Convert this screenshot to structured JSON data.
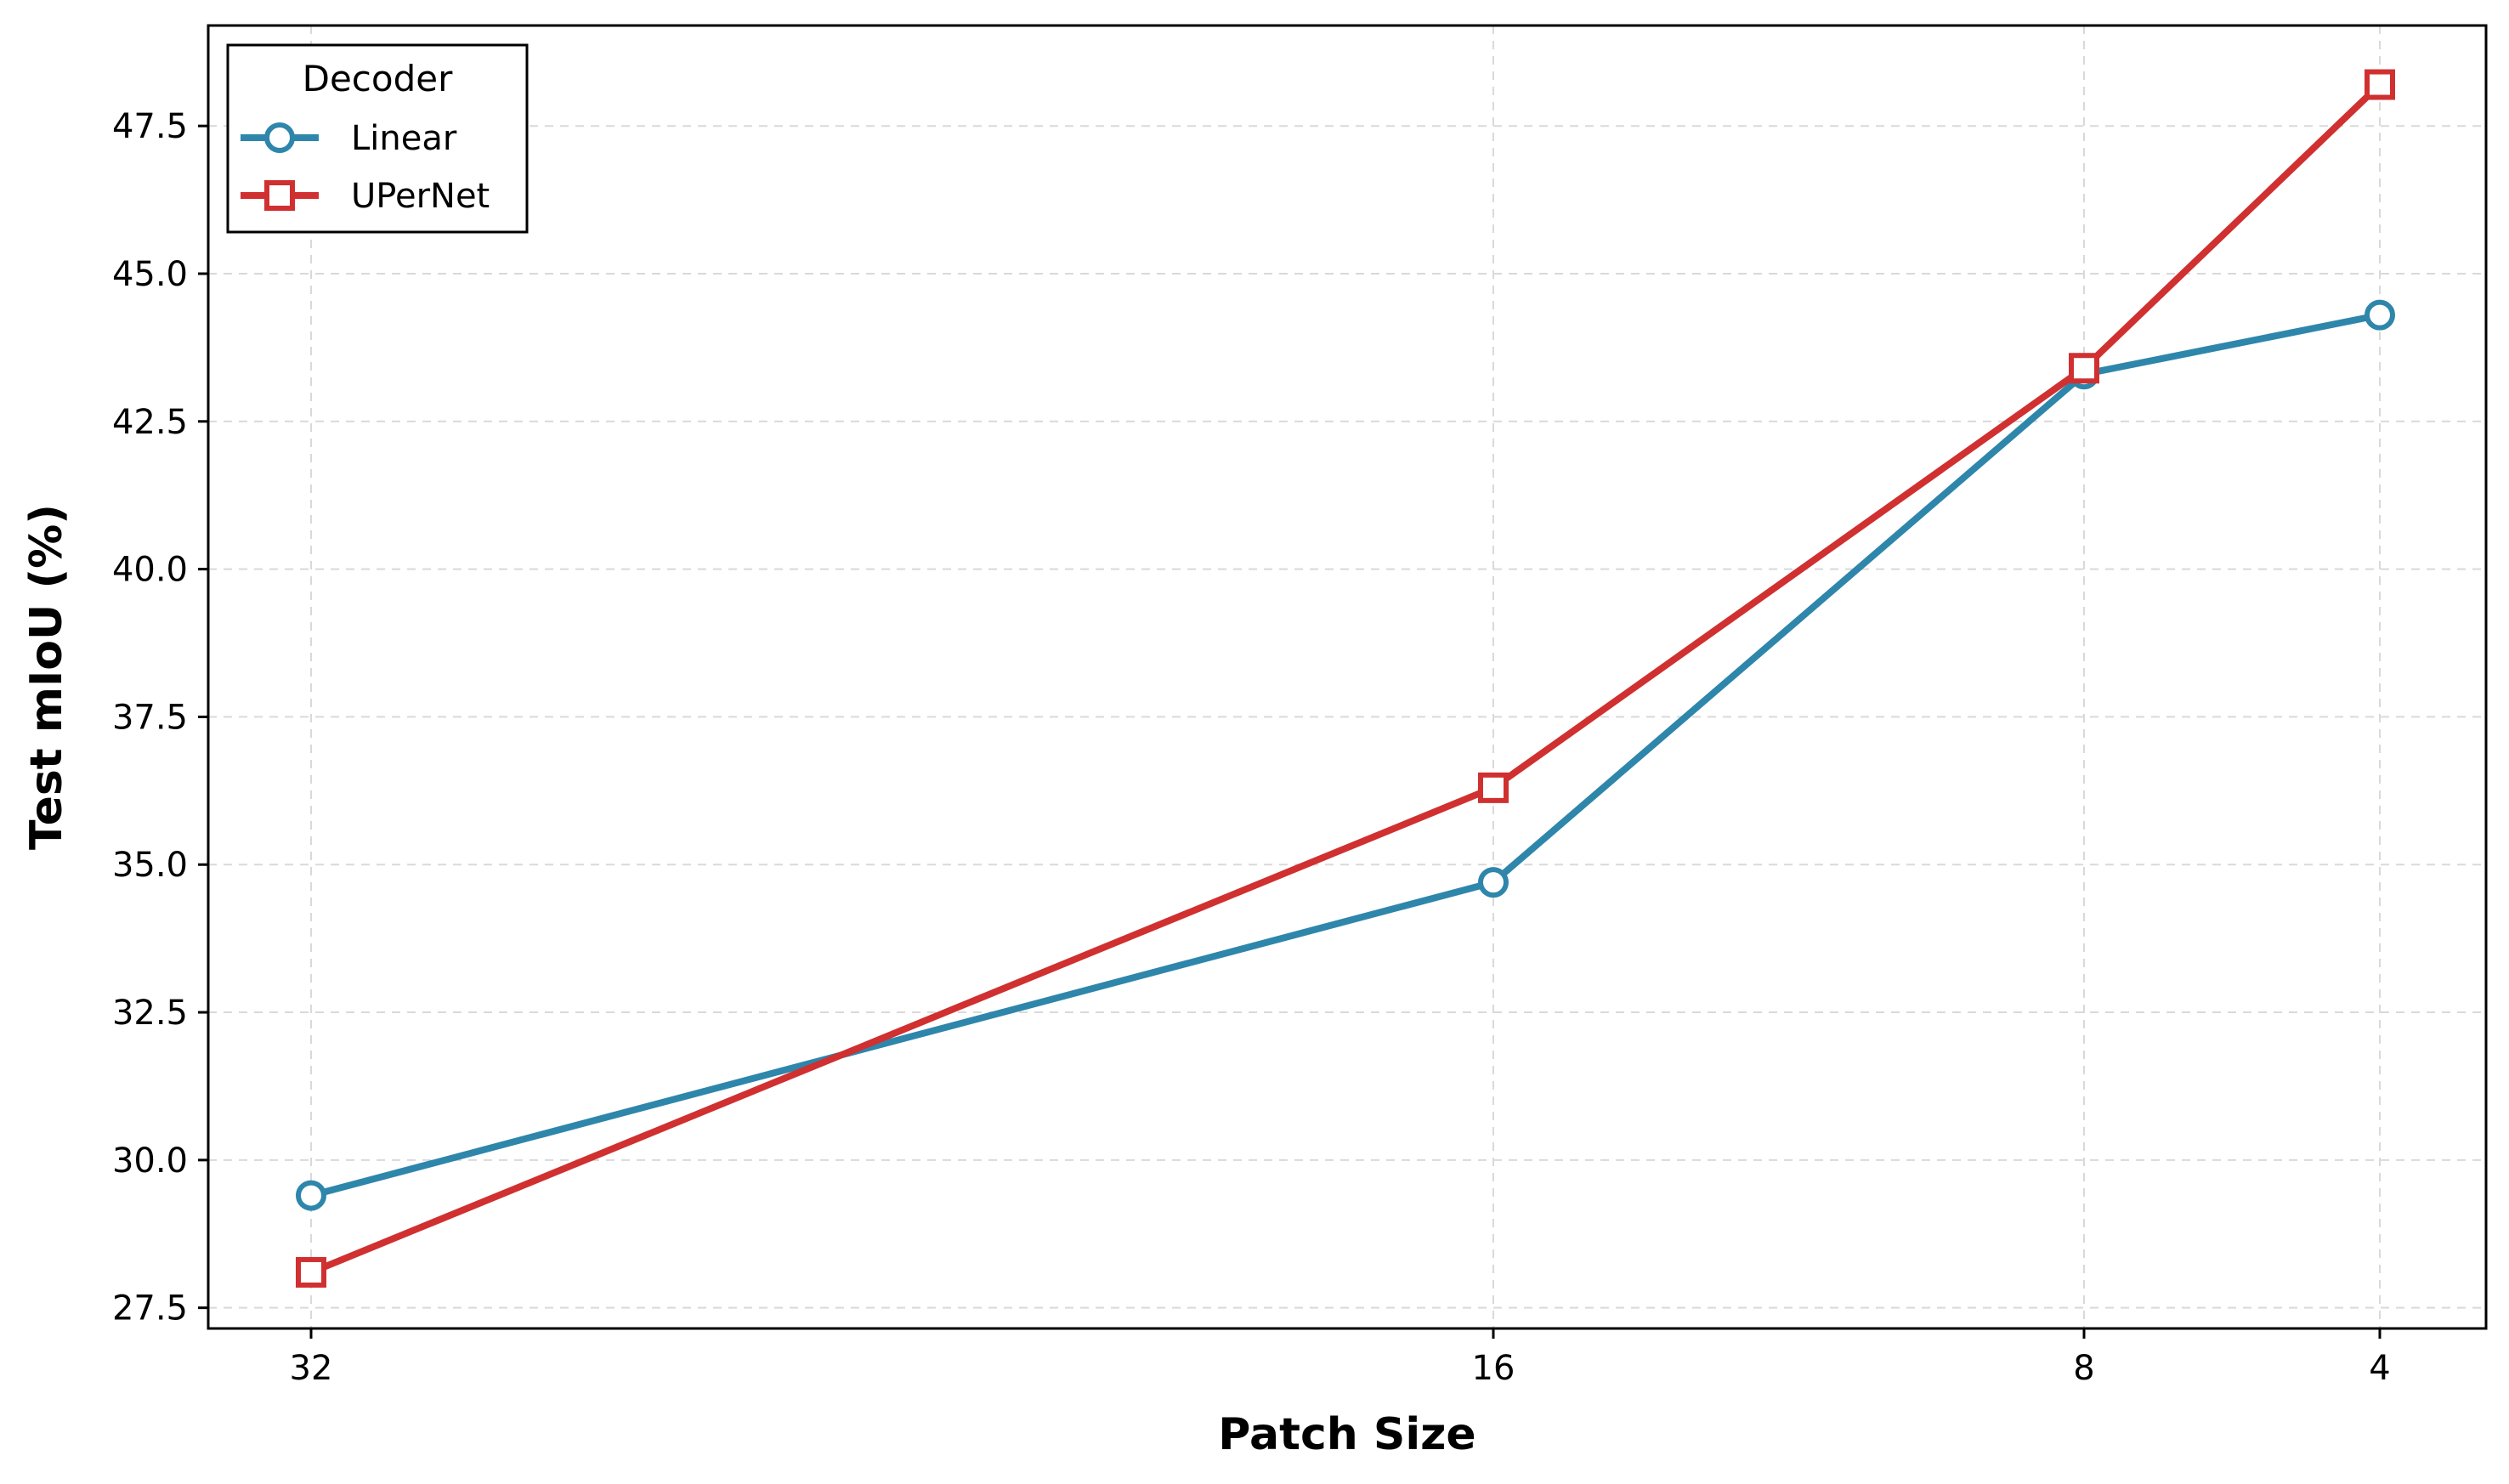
{
  "chart_data": {
    "type": "line",
    "xlabel": "Patch Size",
    "ylabel": "Test mIoU (%)",
    "x_scale": "log2-reversed",
    "categories": [
      "32",
      "16",
      "8",
      "4"
    ],
    "x": [
      32,
      16,
      8,
      4
    ],
    "ylim": [
      27.15,
      49.2
    ],
    "yticks": [
      "27.5",
      "30.0",
      "32.5",
      "35.0",
      "37.5",
      "40.0",
      "42.5",
      "45.0",
      "47.5"
    ],
    "ytick_values": [
      27.5,
      30.0,
      32.5,
      35.0,
      37.5,
      40.0,
      42.5,
      45.0,
      47.5
    ],
    "grid": true,
    "legend": {
      "title": "Decoder",
      "placement": "top-left"
    },
    "series": [
      {
        "name": "Linear",
        "values": [
          29.4,
          34.7,
          43.3,
          44.3
        ],
        "color": "#2e86ab",
        "marker": "circle"
      },
      {
        "name": "UPerNet",
        "values": [
          28.1,
          36.3,
          43.4,
          48.2
        ],
        "color": "#d03030",
        "marker": "square"
      }
    ]
  }
}
